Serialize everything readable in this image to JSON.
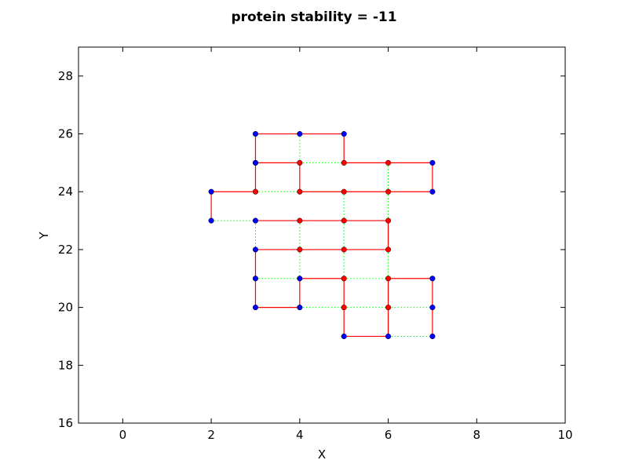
{
  "chart_data": {
    "type": "scatter",
    "title": "protein stability = -11",
    "xlabel": "X",
    "ylabel": "Y",
    "xlim": [
      -1,
      10
    ],
    "ylim": [
      16,
      29
    ],
    "xticks": [
      0,
      2,
      4,
      6,
      8,
      10
    ],
    "yticks": [
      16,
      18,
      20,
      22,
      24,
      26,
      28
    ],
    "grid": false,
    "legend": "none",
    "colors": {
      "chain": "#ff0000",
      "contact": "#00ff00",
      "polar": "#0000ff",
      "hydrophobic": "#ff0000",
      "point_edge": "#000000"
    },
    "chain": [
      {
        "x": 2,
        "y": 23,
        "type": "P"
      },
      {
        "x": 2,
        "y": 24,
        "type": "P"
      },
      {
        "x": 3,
        "y": 24,
        "type": "H"
      },
      {
        "x": 3,
        "y": 25,
        "type": "P"
      },
      {
        "x": 3,
        "y": 26,
        "type": "P"
      },
      {
        "x": 4,
        "y": 26,
        "type": "P"
      },
      {
        "x": 5,
        "y": 26,
        "type": "P"
      },
      {
        "x": 5,
        "y": 25,
        "type": "H"
      },
      {
        "x": 6,
        "y": 25,
        "type": "H"
      },
      {
        "x": 7,
        "y": 25,
        "type": "P"
      },
      {
        "x": 7,
        "y": 24,
        "type": "P"
      },
      {
        "x": 6,
        "y": 24,
        "type": "H"
      },
      {
        "x": 5,
        "y": 24,
        "type": "H"
      },
      {
        "x": 4,
        "y": 24,
        "type": "H"
      },
      {
        "x": 4,
        "y": 25,
        "type": "H"
      },
      {
        "x": 3,
        "y": 25,
        "type": "P"
      },
      {
        "x": 3,
        "y": 23,
        "type": "P"
      },
      {
        "x": 4,
        "y": 23,
        "type": "H"
      },
      {
        "x": 5,
        "y": 23,
        "type": "H"
      },
      {
        "x": 6,
        "y": 23,
        "type": "H"
      },
      {
        "x": 6,
        "y": 22,
        "type": "H"
      },
      {
        "x": 5,
        "y": 22,
        "type": "H"
      },
      {
        "x": 4,
        "y": 22,
        "type": "H"
      },
      {
        "x": 3,
        "y": 22,
        "type": "P"
      },
      {
        "x": 3,
        "y": 21,
        "type": "P"
      },
      {
        "x": 3,
        "y": 20,
        "type": "P"
      },
      {
        "x": 4,
        "y": 20,
        "type": "P"
      },
      {
        "x": 4,
        "y": 21,
        "type": "P"
      },
      {
        "x": 5,
        "y": 21,
        "type": "H"
      },
      {
        "x": 5,
        "y": 20,
        "type": "H"
      },
      {
        "x": 5,
        "y": 19,
        "type": "P"
      },
      {
        "x": 6,
        "y": 19,
        "type": "P"
      },
      {
        "x": 6,
        "y": 20,
        "type": "H"
      },
      {
        "x": 6,
        "y": 21,
        "type": "H"
      },
      {
        "x": 7,
        "y": 21,
        "type": "P"
      },
      {
        "x": 7,
        "y": 20,
        "type": "P"
      },
      {
        "x": 7,
        "y": 19,
        "type": "P"
      }
    ],
    "chain_breaks": [
      [
        3,
        25,
        3,
        23
      ]
    ],
    "contacts": [
      [
        [
          2,
          23
        ],
        [
          3,
          23
        ]
      ],
      [
        [
          3,
          24
        ],
        [
          4,
          24
        ]
      ],
      [
        [
          4,
          24
        ],
        [
          5,
          24
        ]
      ],
      [
        [
          4,
          25
        ],
        [
          5,
          25
        ]
      ],
      [
        [
          4,
          25
        ],
        [
          4,
          26
        ]
      ],
      [
        [
          3,
          23
        ],
        [
          3,
          22
        ]
      ],
      [
        [
          4,
          23
        ],
        [
          4,
          22
        ]
      ],
      [
        [
          5,
          24
        ],
        [
          5,
          23
        ]
      ],
      [
        [
          5,
          23
        ],
        [
          5,
          22
        ]
      ],
      [
        [
          6,
          24
        ],
        [
          6,
          23
        ]
      ],
      [
        [
          6,
          25
        ],
        [
          6,
          24
        ]
      ],
      [
        [
          3,
          21
        ],
        [
          4,
          21
        ]
      ],
      [
        [
          4,
          22
        ],
        [
          4,
          21
        ]
      ],
      [
        [
          5,
          22
        ],
        [
          5,
          21
        ]
      ],
      [
        [
          6,
          22
        ],
        [
          6,
          21
        ]
      ],
      [
        [
          4,
          20
        ],
        [
          5,
          20
        ]
      ],
      [
        [
          5,
          20
        ],
        [
          6,
          20
        ]
      ],
      [
        [
          6,
          20
        ],
        [
          7,
          20
        ]
      ],
      [
        [
          6,
          19
        ],
        [
          7,
          19
        ]
      ],
      [
        [
          5,
          21
        ],
        [
          6,
          21
        ]
      ]
    ]
  }
}
